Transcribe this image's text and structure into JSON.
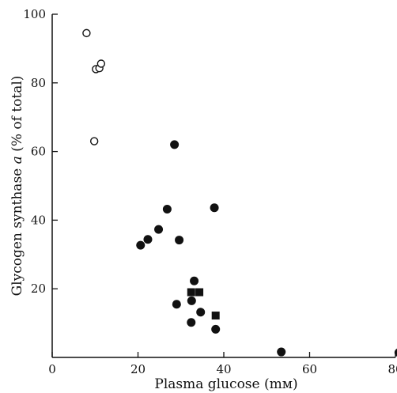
{
  "chart_data": {
    "type": "scatter",
    "xlabel": "Plasma glucose (mм)",
    "ylabel_prefix": "Glycogen synthase ",
    "ylabel_italic": "a",
    "ylabel_suffix": " (% of total)",
    "xlim": [
      0,
      80
    ],
    "ylim": [
      0,
      100
    ],
    "x_ticks": [
      0,
      20,
      40,
      60,
      80
    ],
    "y_ticks": [
      20,
      40,
      60,
      80,
      100
    ],
    "grid": false,
    "series": [
      {
        "marker": "open-circle",
        "points": [
          [
            8,
            94.5
          ],
          [
            10.2,
            84
          ],
          [
            11,
            84.3
          ],
          [
            11.4,
            85.6
          ],
          [
            9.8,
            63
          ]
        ]
      },
      {
        "marker": "filled-circle",
        "points": [
          [
            28.5,
            62
          ],
          [
            26.8,
            43.2
          ],
          [
            37.8,
            43.6
          ],
          [
            24.8,
            37.3
          ],
          [
            22.3,
            34.4
          ],
          [
            29.6,
            34.2
          ],
          [
            20.6,
            32.7
          ],
          [
            33.1,
            22.3
          ],
          [
            32.5,
            16.5
          ],
          [
            34.6,
            13.2
          ],
          [
            29,
            15.5
          ],
          [
            32.4,
            10.2
          ],
          [
            38.1,
            8.2
          ],
          [
            53.4,
            1.6
          ],
          [
            80.8,
            1.4
          ],
          [
            81.2,
            1.9
          ]
        ]
      },
      {
        "marker": "filled-square",
        "points": [
          [
            32.4,
            19
          ],
          [
            34.3,
            19
          ],
          [
            38.1,
            12.2
          ]
        ]
      }
    ]
  }
}
